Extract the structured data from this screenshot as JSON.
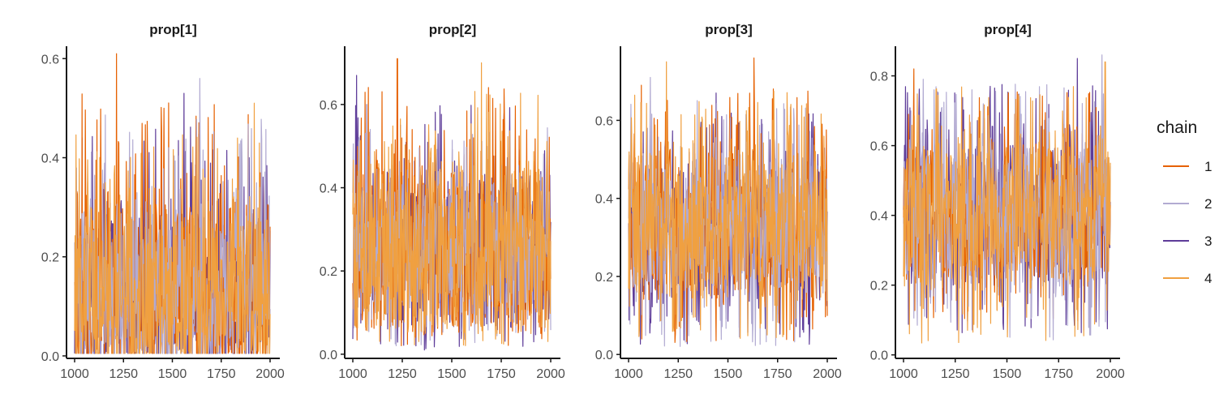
{
  "chart_data": [
    {
      "type": "line",
      "title": "prop[1]",
      "xlabel": "",
      "ylabel": "",
      "xlim": [
        1000,
        2000
      ],
      "ylim": [
        -0.005,
        0.625
      ],
      "xticks": [
        1000,
        1250,
        1500,
        1750,
        2000
      ],
      "xtick_labels": [
        "1000",
        "1250",
        "1500",
        "1750",
        "2000"
      ],
      "yticks": [
        0.0,
        0.2,
        0.4,
        0.6
      ],
      "ytick_labels": [
        "0.0",
        "0.2",
        "0.4",
        "0.6"
      ],
      "series": [
        {
          "name": "1",
          "color": "#E66101",
          "summary": {
            "center": 0.1,
            "low": 0.005,
            "high": 0.61,
            "peak_x": 1215
          }
        },
        {
          "name": "2",
          "color": "#B2ABD2",
          "summary": {
            "center": 0.1,
            "low": 0.005,
            "high": 0.56,
            "peak_x": 1640
          }
        },
        {
          "name": "3",
          "color": "#5E3C99",
          "summary": {
            "center": 0.1,
            "low": 0.005,
            "high": 0.53,
            "peak_x": 1560
          }
        },
        {
          "name": "4",
          "color": "#F0A040",
          "summary": {
            "center": 0.1,
            "low": 0.005,
            "high": 0.51,
            "peak_x": 1920
          }
        }
      ]
    },
    {
      "type": "line",
      "title": "prop[2]",
      "xlabel": "",
      "ylabel": "",
      "xlim": [
        1000,
        2000
      ],
      "ylim": [
        -0.01,
        0.74
      ],
      "xticks": [
        1000,
        1250,
        1500,
        1750,
        2000
      ],
      "xtick_labels": [
        "1000",
        "1250",
        "1500",
        "1750",
        "2000"
      ],
      "yticks": [
        0.0,
        0.2,
        0.4,
        0.6
      ],
      "ytick_labels": [
        "0.0",
        "0.2",
        "0.4",
        "0.6"
      ],
      "series": [
        {
          "name": "1",
          "color": "#E66101",
          "summary": {
            "center": 0.25,
            "low": 0.02,
            "high": 0.71,
            "peak_x": 1225
          }
        },
        {
          "name": "2",
          "color": "#B2ABD2",
          "summary": {
            "center": 0.25,
            "low": 0.02,
            "high": 0.6,
            "peak_x": 1070
          }
        },
        {
          "name": "3",
          "color": "#5E3C99",
          "summary": {
            "center": 0.25,
            "low": 0.01,
            "high": 0.67,
            "peak_x": 1020
          }
        },
        {
          "name": "4",
          "color": "#F0A040",
          "summary": {
            "center": 0.25,
            "low": 0.02,
            "high": 0.7,
            "peak_x": 1650
          }
        }
      ]
    },
    {
      "type": "line",
      "title": "prop[3]",
      "xlabel": "",
      "ylabel": "",
      "xlim": [
        1000,
        2000
      ],
      "ylim": [
        -0.01,
        0.79
      ],
      "xticks": [
        1000,
        1250,
        1500,
        1750,
        2000
      ],
      "xtick_labels": [
        "1000",
        "1250",
        "1500",
        "1750",
        "2000"
      ],
      "yticks": [
        0.0,
        0.2,
        0.4,
        0.6
      ],
      "ytick_labels": [
        "0.0",
        "0.2",
        "0.4",
        "0.6"
      ],
      "series": [
        {
          "name": "1",
          "color": "#E66101",
          "summary": {
            "center": 0.33,
            "low": 0.03,
            "high": 0.76,
            "peak_x": 1630
          }
        },
        {
          "name": "2",
          "color": "#B2ABD2",
          "summary": {
            "center": 0.33,
            "low": 0.02,
            "high": 0.71,
            "peak_x": 1110
          }
        },
        {
          "name": "3",
          "color": "#5E3C99",
          "summary": {
            "center": 0.33,
            "low": 0.02,
            "high": 0.67,
            "peak_x": 1440
          }
        },
        {
          "name": "4",
          "color": "#F0A040",
          "summary": {
            "center": 0.33,
            "low": 0.03,
            "high": 0.75,
            "peak_x": 1190
          }
        }
      ]
    },
    {
      "type": "line",
      "title": "prop[4]",
      "xlabel": "",
      "ylabel": "",
      "xlim": [
        1000,
        2000
      ],
      "ylim": [
        -0.01,
        0.885
      ],
      "xticks": [
        1000,
        1250,
        1500,
        1750,
        2000
      ],
      "xtick_labels": [
        "1000",
        "1250",
        "1500",
        "1750",
        "2000"
      ],
      "yticks": [
        0.0,
        0.2,
        0.4,
        0.6,
        0.8
      ],
      "ytick_labels": [
        "0.0",
        "0.2",
        "0.4",
        "0.6",
        "0.8"
      ],
      "series": [
        {
          "name": "1",
          "color": "#E66101",
          "summary": {
            "center": 0.4,
            "low": 0.09,
            "high": 0.82,
            "peak_x": 1050
          }
        },
        {
          "name": "2",
          "color": "#B2ABD2",
          "summary": {
            "center": 0.4,
            "low": 0.04,
            "high": 0.86,
            "peak_x": 1960
          }
        },
        {
          "name": "3",
          "color": "#5E3C99",
          "summary": {
            "center": 0.4,
            "low": 0.06,
            "high": 0.85,
            "peak_x": 1840
          }
        },
        {
          "name": "4",
          "color": "#F0A040",
          "summary": {
            "center": 0.4,
            "low": 0.03,
            "high": 0.84,
            "peak_x": 1975
          }
        }
      ]
    }
  ],
  "legend": {
    "title": "chain",
    "entries": [
      {
        "label": "1",
        "color": "#E66101"
      },
      {
        "label": "2",
        "color": "#B2ABD2"
      },
      {
        "label": "3",
        "color": "#5E3C99"
      },
      {
        "label": "4",
        "color": "#F0A040"
      }
    ]
  },
  "colors": {
    "axis": "#1a1a1a",
    "tick_text": "#4d4d4d",
    "background": "#ffffff"
  }
}
